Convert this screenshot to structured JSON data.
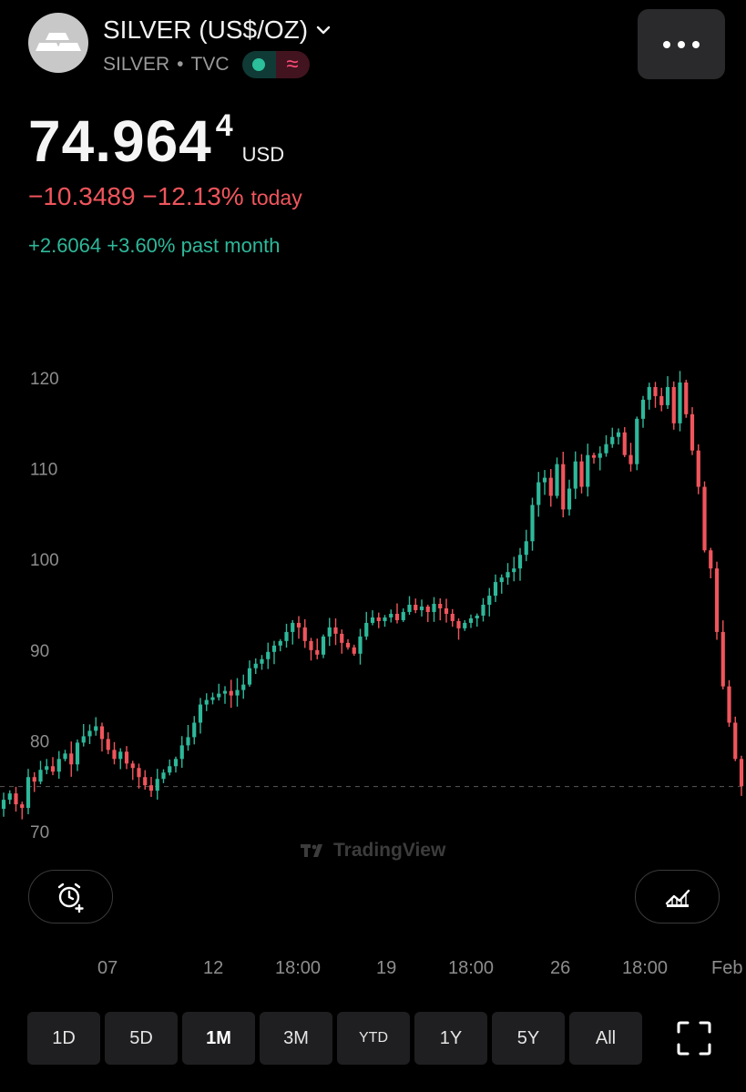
{
  "header": {
    "symbol_name": "SILVER (US$/OZ)",
    "symbol_ticker": "SILVER",
    "separator": "•",
    "exchange": "TVC",
    "wave_glyph": "≈",
    "icons": {
      "avatar": "silver-bars-icon",
      "dropdown": "chevron-down-icon",
      "more": "more-dots-icon"
    }
  },
  "price": {
    "main": "74.964",
    "sup": "4",
    "currency": "USD",
    "change_today": "−10.3489 −12.13%",
    "today_word": "today",
    "change_month": "+2.6064 +3.60% past month"
  },
  "colors": {
    "up": "#2eb89a",
    "down": "#f0555c",
    "background": "#000000"
  },
  "watermark": "TradingView",
  "buttons": {
    "alert_icon": "alarm-plus-icon",
    "chart_type_icon": "chart-area-icon",
    "fullscreen_icon": "fullscreen-icon"
  },
  "x_labels": [
    "07",
    "12",
    "18:00",
    "19",
    "18:00",
    "26",
    "18:00",
    "Feb"
  ],
  "ranges": [
    "1D",
    "5D",
    "1M",
    "3M",
    "YTD",
    "1Y",
    "5Y",
    "All"
  ],
  "active_range": "1M",
  "chart_data": {
    "type": "candlestick",
    "y_ticks": [
      120,
      110,
      100,
      90,
      80,
      70
    ],
    "ylim": [
      69,
      122
    ],
    "last_price_line": 74.96,
    "grid": false,
    "series_close": [
      73.5,
      74.2,
      73.0,
      72.6,
      76.0,
      75.5,
      76.8,
      77.2,
      76.6,
      78.0,
      78.6,
      77.4,
      79.8,
      80.5,
      81.1,
      81.6,
      80.2,
      79.0,
      78.0,
      78.8,
      77.5,
      77.0,
      76.0,
      75.1,
      74.5,
      75.8,
      76.5,
      77.2,
      78.0,
      79.5,
      80.4,
      82.0,
      84.0,
      84.5,
      84.8,
      85.2,
      85.5,
      85.0,
      85.6,
      86.2,
      88.0,
      88.5,
      89.0,
      89.8,
      90.5,
      91.0,
      92.0,
      93.0,
      92.5,
      91.0,
      90.0,
      89.5,
      91.5,
      92.5,
      91.8,
      90.8,
      90.3,
      89.6,
      91.5,
      93.0,
      93.6,
      93.2,
      93.6,
      94.0,
      93.3,
      94.2,
      95.0,
      94.4,
      94.8,
      94.2,
      95.1,
      94.6,
      94.0,
      93.2,
      92.4,
      93.0,
      93.5,
      93.8,
      95.0,
      96.0,
      97.5,
      98.0,
      98.6,
      99.0,
      100.5,
      102.0,
      106.0,
      108.5,
      109.0,
      107.0,
      110.5,
      105.5,
      107.8,
      110.8,
      108.0,
      111.5,
      111.2,
      111.7,
      112.7,
      113.5,
      114.0,
      111.5,
      110.5,
      115.5,
      117.6,
      119.0,
      118.0,
      117.0,
      119.0,
      115.0,
      119.5,
      116.0,
      112.0,
      108.0,
      101.0,
      99.0,
      92.0,
      86.0,
      82.0,
      78.0,
      75.0
    ]
  }
}
